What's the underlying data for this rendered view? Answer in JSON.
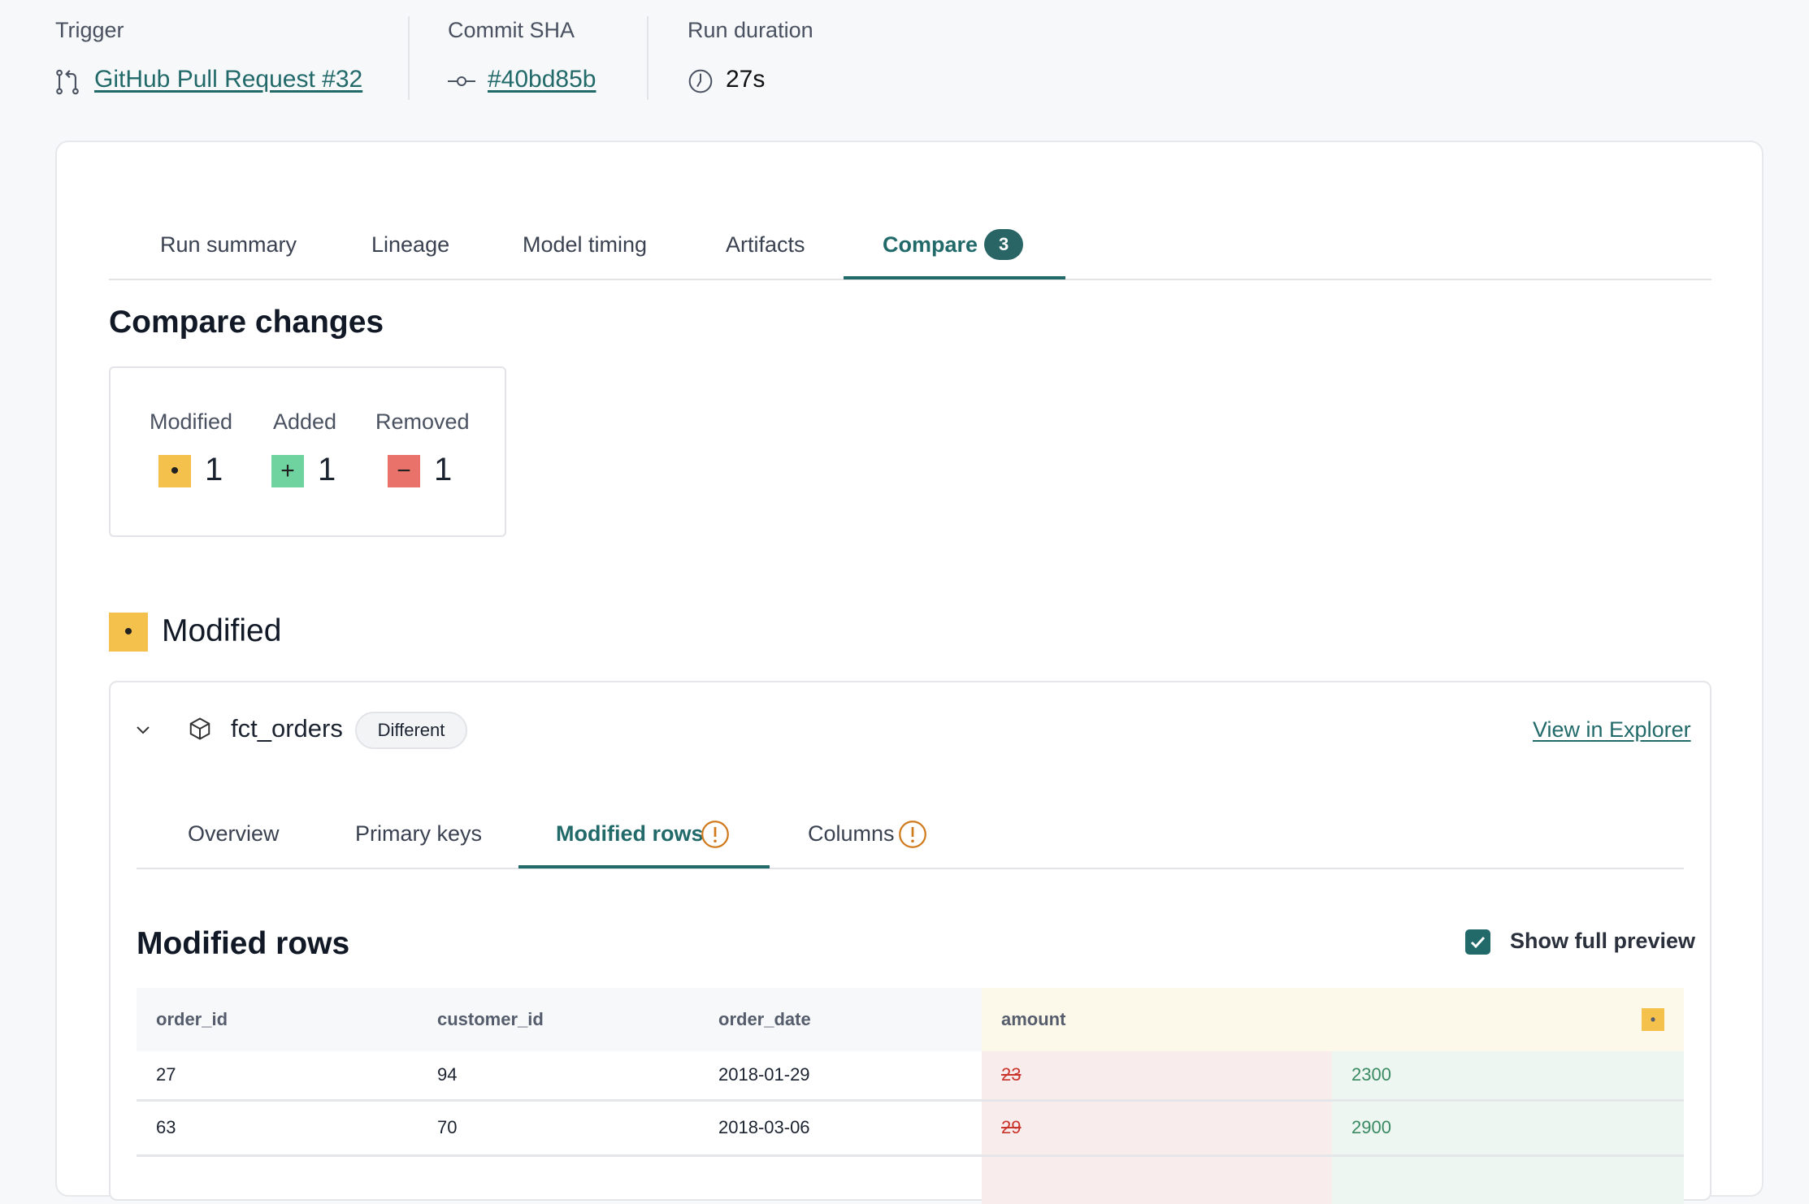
{
  "header": {
    "trigger": {
      "label": "Trigger",
      "value": "GitHub Pull Request #32",
      "icon": "pull-request-icon"
    },
    "commit": {
      "label": "Commit SHA",
      "value": "#40bd85b",
      "icon": "commit-icon"
    },
    "duration": {
      "label": "Run duration",
      "value": "27s",
      "icon": "clock-icon"
    }
  },
  "tabs": [
    {
      "label": "Run summary"
    },
    {
      "label": "Lineage"
    },
    {
      "label": "Model timing"
    },
    {
      "label": "Artifacts"
    },
    {
      "label": "Compare",
      "badge": "3",
      "active": true
    }
  ],
  "compare": {
    "title": "Compare changes",
    "summary": [
      {
        "label": "Modified",
        "count": "1",
        "symbol": "•",
        "color": "#f4c14c"
      },
      {
        "label": "Added",
        "count": "1",
        "symbol": "+",
        "color": "#6fd3a0"
      },
      {
        "label": "Removed",
        "count": "1",
        "symbol": "−",
        "color": "#e9736b"
      }
    ],
    "section": {
      "title": "Modified",
      "symbol": "•"
    },
    "model": {
      "name": "fct_orders",
      "status": "Different",
      "link": "View in Explorer",
      "subtabs": [
        {
          "label": "Overview"
        },
        {
          "label": "Primary keys"
        },
        {
          "label": "Modified rows",
          "warn": true,
          "active": true
        },
        {
          "label": "Columns",
          "warn": true
        }
      ],
      "rows_title": "Modified rows",
      "show_full_preview": {
        "label": "Show full preview",
        "checked": true
      },
      "table": {
        "columns": [
          "order_id",
          "customer_id",
          "order_date",
          "amount"
        ],
        "rows": [
          [
            "27",
            "94",
            "2018-01-29",
            "23",
            "2300"
          ],
          [
            "63",
            "70",
            "2018-03-06",
            "29",
            "2900"
          ]
        ]
      }
    }
  },
  "colors": {
    "accent": "#226a6a",
    "modified": "#f4c14c",
    "added": "#6fd3a0",
    "removed": "#e9736b"
  }
}
